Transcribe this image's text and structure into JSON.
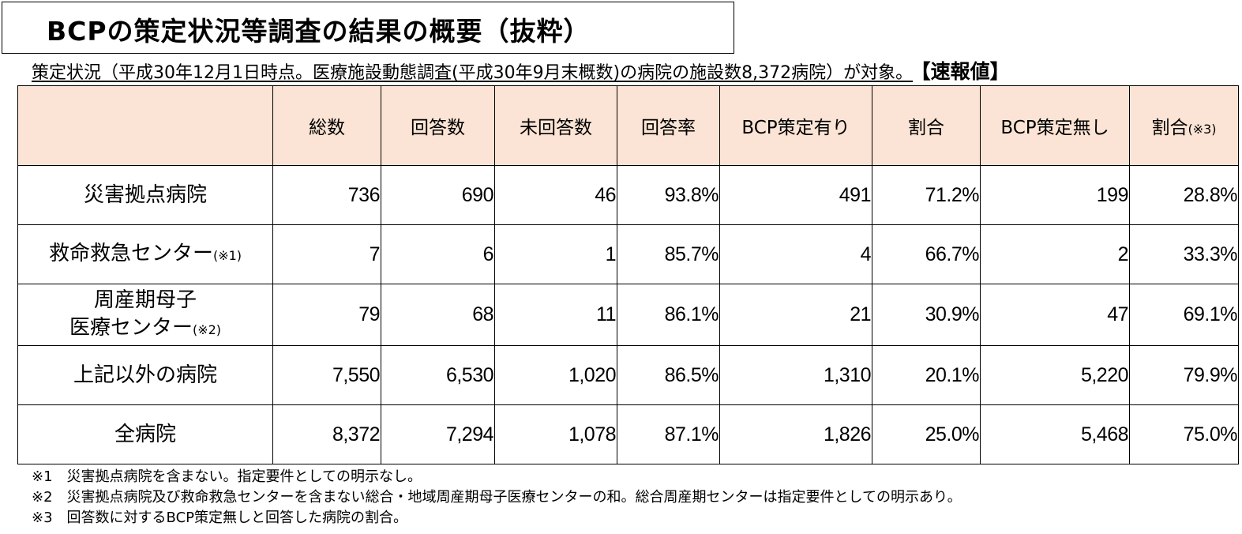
{
  "title": "BCPの策定状況等調査の結果の概要（抜粋）",
  "subtitle": "策定状況（平成30年12月1日時点。医療施設動態調査(平成30年9月末概数)の病院の施設数8,372病院）が対象。",
  "subtitle_tag": "【速報値】",
  "table": {
    "headers": [
      "",
      "総数",
      "回答数",
      "未回答数",
      "回答率",
      "BCP策定有り",
      "割合",
      "BCP策定無し",
      "割合"
    ],
    "last_header_note": "(※3)",
    "rows": [
      {
        "label": "災害拠点病院",
        "note": "",
        "label2": "",
        "note2": "",
        "values": [
          "736",
          "690",
          "46",
          "93.8%",
          "491",
          "71.2%",
          "199",
          "28.8%"
        ]
      },
      {
        "label": "救命救急センター",
        "note": "(※1)",
        "label2": "",
        "note2": "",
        "values": [
          "7",
          "6",
          "1",
          "85.7%",
          "4",
          "66.7%",
          "2",
          "33.3%"
        ]
      },
      {
        "label": "周産期母子",
        "note": "",
        "label2": "医療センター",
        "note2": "(※2)",
        "values": [
          "79",
          "68",
          "11",
          "86.1%",
          "21",
          "30.9%",
          "47",
          "69.1%"
        ]
      },
      {
        "label": "上記以外の病院",
        "note": "",
        "label2": "",
        "note2": "",
        "values": [
          "7,550",
          "6,530",
          "1,020",
          "86.5%",
          "1,310",
          "20.1%",
          "5,220",
          "79.9%"
        ]
      },
      {
        "label": "全病院",
        "note": "",
        "label2": "",
        "note2": "",
        "values": [
          "8,372",
          "7,294",
          "1,078",
          "87.1%",
          "1,826",
          "25.0%",
          "5,468",
          "75.0%"
        ]
      }
    ]
  },
  "footnotes": [
    "※1　災害拠点病院を含まない。指定要件としての明示なし。",
    "※2　災害拠点病院及び救命救急センターを含まない総合・地域周産期母子医療センターの和。総合周産期センターは指定要件としての明示あり。",
    "※3　回答数に対するBCP策定無しと回答した病院の割合。"
  ],
  "colors": {
    "header_bg": "#fbe4d5",
    "border": "#000000"
  }
}
